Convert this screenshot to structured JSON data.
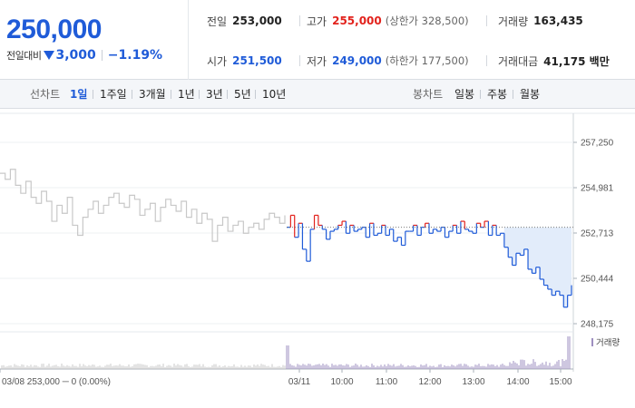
{
  "summary": {
    "current_price": "250,000",
    "change_label": "전일대비",
    "change_amount": "3,000",
    "change_rate": "−1.19%",
    "prev_close_label": "전일",
    "prev_close": "253,000",
    "high_label": "고가",
    "high": "255,000",
    "upper_limit": "(상한가 328,500)",
    "volume_label": "거래량",
    "volume": "163,435",
    "open_label": "시가",
    "open": "251,500",
    "low_label": "저가",
    "low": "249,000",
    "lower_limit": "(하한가 177,500)",
    "amount_label": "거래대금",
    "amount": "41,175 백만"
  },
  "toolbar": {
    "line_chart_label": "선차트",
    "periods": [
      "1일",
      "1주일",
      "3개월",
      "1년",
      "3년",
      "5년",
      "10년"
    ],
    "active_period": "1일",
    "candle_chart_label": "봉차트",
    "candles": [
      "일봉",
      "주봉",
      "월봉"
    ]
  },
  "colors": {
    "price_down": "#1f5bd8",
    "price_up": "#e2221c",
    "prev_day_series": "#c8c8c8",
    "below_prev_fill": "#e2ecfa",
    "volume_bar": "#9e8fc0"
  },
  "chart_data": {
    "type": "line",
    "y_ticks": [
      "257,250",
      "254,981",
      "252,713",
      "250,444",
      "248,175"
    ],
    "ylim": [
      248175,
      257250
    ],
    "reference_price": 253000,
    "prev_day_footer": "03/08  253,000 ─ 0 (0.00%)",
    "prev_day_date": "03/08",
    "x_ticks": [
      "03/11",
      "10:00",
      "11:00",
      "12:00",
      "13:00",
      "14:00",
      "15:00"
    ],
    "volume_legend": "거래량",
    "prev_day": {
      "name": "03/08",
      "values": [
        255700,
        255400,
        255900,
        255100,
        254700,
        255300,
        254500,
        254200,
        254800,
        254300,
        253300,
        254100,
        253700,
        254500,
        253100,
        252600,
        253500,
        253900,
        254300,
        253700,
        254100,
        254500,
        254700,
        254200,
        254000,
        254600,
        254400,
        253600,
        253900,
        254200,
        253300,
        254000,
        254400,
        254100,
        253800,
        254300,
        253500,
        253900,
        253200,
        253700,
        253400,
        252300,
        253100,
        253500,
        252800,
        253100,
        253300,
        252700,
        253000,
        253200,
        252900,
        253400,
        253700,
        253500,
        253200,
        253600
      ]
    },
    "today": {
      "name": "03/11",
      "values": [
        253000,
        253600,
        252500,
        253200,
        251900,
        251300,
        252900,
        253600,
        253100,
        252900,
        252400,
        252800,
        252900,
        253100,
        253300,
        252700,
        253100,
        252800,
        252900,
        253000,
        252500,
        253200,
        252600,
        252700,
        253100,
        252600,
        252900,
        252300,
        252500,
        252100,
        252800,
        252800,
        253100,
        252600,
        253000,
        253200,
        252700,
        252900,
        252800,
        253000,
        252500,
        252800,
        253100,
        252700,
        253300,
        252900,
        252800,
        252700,
        253200,
        253000,
        253300,
        252600,
        253100,
        252600,
        252700,
        252000,
        251500,
        251100,
        251700,
        251600,
        251900,
        250900,
        250700,
        251000,
        250400,
        250100,
        249900,
        249600,
        249800,
        249600,
        249000,
        249600,
        250100
      ]
    }
  }
}
